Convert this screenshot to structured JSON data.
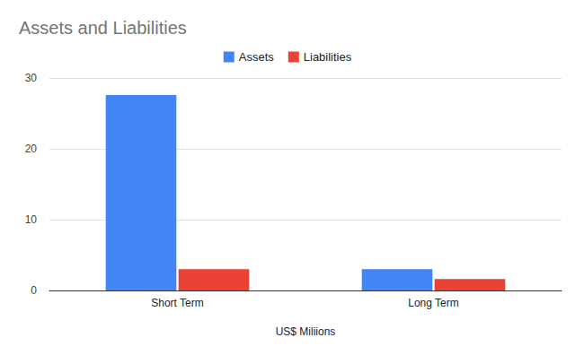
{
  "chart_data": {
    "type": "bar",
    "title": "Assets and Liabilities",
    "x_label": "US$ Miliions",
    "categories": [
      "Short Term",
      "Long Term"
    ],
    "series": [
      {
        "name": "Assets",
        "color": "#4285f4",
        "values": [
          27.6,
          3.0
        ]
      },
      {
        "name": "Liabilities",
        "color": "#ea4335",
        "values": [
          3.0,
          1.6
        ]
      }
    ],
    "ylim": [
      0,
      30
    ],
    "yticks": [
      0,
      10,
      20,
      30
    ],
    "grid": true,
    "legend": "top"
  }
}
